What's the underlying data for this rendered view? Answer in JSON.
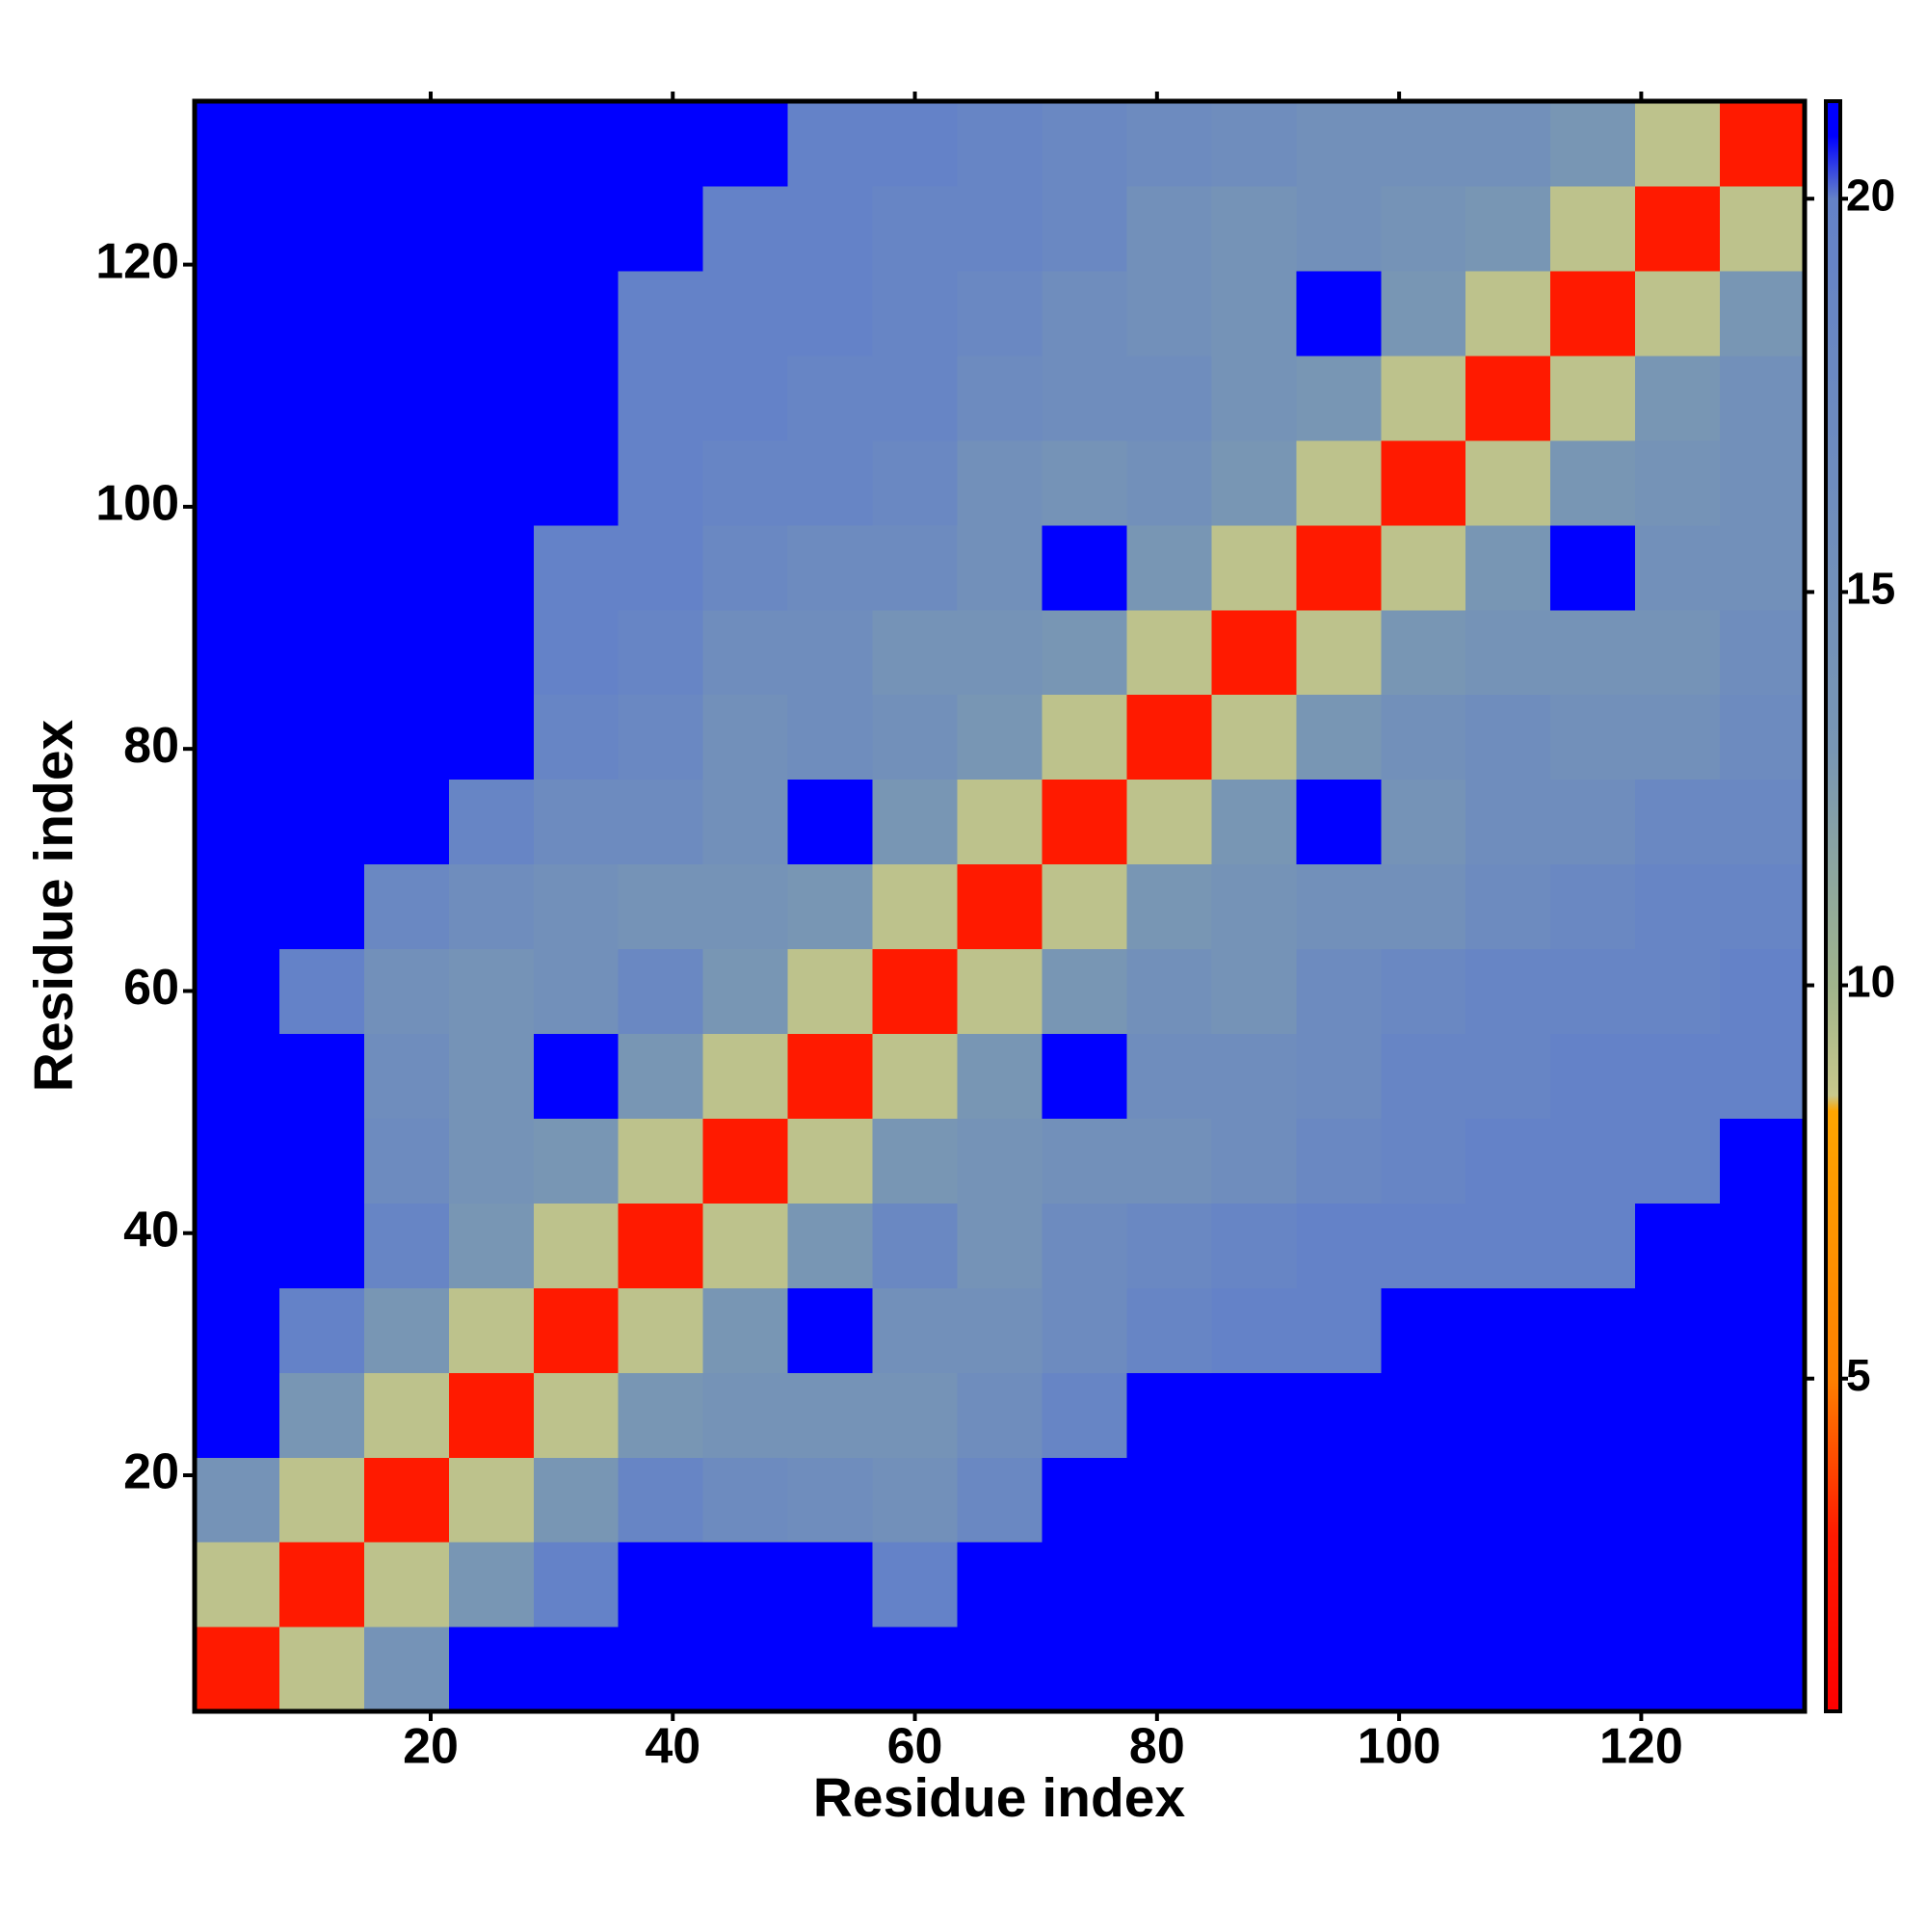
{
  "chart_data": {
    "type": "heatmap",
    "xlabel": "Residue index",
    "ylabel": "Residue index",
    "xlim": [
      0.5,
      133.5
    ],
    "ylim": [
      0.5,
      133.5
    ],
    "xticks": [
      20,
      40,
      60,
      80,
      100,
      120
    ],
    "yticks": [
      20,
      40,
      60,
      80,
      100,
      120
    ],
    "xbins": [
      0.5,
      7.5,
      14.5,
      21.5,
      28.5,
      35.5,
      42.5,
      49.5,
      56.5,
      63.5,
      70.5,
      77.5,
      84.5,
      91.5,
      98.5,
      105.5,
      112.5,
      119.5,
      126.5,
      133.5
    ],
    "ybins": [
      0.5,
      7.5,
      14.5,
      21.5,
      28.5,
      35.5,
      42.5,
      49.5,
      56.5,
      63.5,
      70.5,
      77.5,
      84.5,
      91.5,
      98.5,
      105.5,
      112.5,
      119.5,
      126.5,
      133.5
    ],
    "zlim": [
      0.77,
      21.24
    ],
    "zticks": [
      5,
      10,
      15,
      20
    ],
    "colorscale": [
      {
        "value": 0.77,
        "color": "#ff0000"
      },
      {
        "value": 3,
        "color": "#ff1a00"
      },
      {
        "value": 5,
        "color": "#ff8000"
      },
      {
        "value": 8.4,
        "color": "#ffa500"
      },
      {
        "value": 8.6,
        "color": "#c8c88c"
      },
      {
        "value": 10,
        "color": "#a0b48c"
      },
      {
        "value": 13,
        "color": "#7896b4"
      },
      {
        "value": 20,
        "color": "#6482c8"
      },
      {
        "value": 20.8,
        "color": "#0000ff"
      },
      {
        "value": 21.24,
        "color": "#0000ff"
      }
    ],
    "z": [
      [
        3,
        9,
        14,
        21,
        21,
        21,
        21,
        21,
        21,
        21,
        21,
        21,
        21,
        21,
        21,
        21,
        21,
        21,
        21
      ],
      [
        9,
        3,
        9,
        13,
        20,
        21,
        21,
        21,
        20,
        21,
        21,
        21,
        21,
        21,
        21,
        21,
        21,
        21,
        21
      ],
      [
        14,
        9,
        3,
        9,
        13,
        19,
        17,
        16,
        15,
        18,
        21,
        21,
        21,
        21,
        21,
        21,
        21,
        21,
        21
      ],
      [
        21,
        13,
        9,
        3,
        9,
        13,
        14,
        14,
        14,
        16,
        19,
        21,
        21,
        21,
        21,
        21,
        21,
        21,
        21
      ],
      [
        21,
        20,
        13,
        9,
        3,
        9,
        13,
        21,
        15,
        15,
        17,
        19,
        20,
        20,
        21,
        21,
        21,
        21,
        21
      ],
      [
        21,
        21,
        19,
        13,
        9,
        3,
        9,
        13,
        18,
        14,
        17,
        18,
        19,
        20,
        20,
        20,
        20,
        21,
        21
      ],
      [
        21,
        21,
        17,
        14,
        13,
        9,
        3,
        9,
        13,
        14,
        15,
        15,
        16,
        18,
        19,
        20,
        20,
        20,
        21
      ],
      [
        21,
        21,
        16,
        14,
        21,
        13,
        9,
        3,
        9,
        13,
        21,
        16,
        16,
        17,
        19,
        19,
        20,
        20,
        20
      ],
      [
        21,
        20,
        15,
        14,
        15,
        18,
        13,
        9,
        3,
        9,
        13,
        15,
        14,
        17,
        18,
        19,
        19,
        19,
        20
      ],
      [
        21,
        21,
        18,
        16,
        15,
        14,
        14,
        13,
        9,
        3,
        9,
        13,
        14,
        15,
        15,
        17,
        18,
        19,
        19
      ],
      [
        21,
        21,
        21,
        19,
        17,
        17,
        15,
        21,
        13,
        9,
        3,
        9,
        13,
        21,
        14,
        16,
        16,
        18,
        18
      ],
      [
        21,
        21,
        21,
        21,
        19,
        18,
        15,
        16,
        15,
        13,
        9,
        3,
        9,
        13,
        15,
        16,
        15,
        15,
        17
      ],
      [
        21,
        21,
        21,
        21,
        20,
        19,
        16,
        16,
        14,
        14,
        13,
        9,
        3,
        9,
        13,
        14,
        14,
        14,
        16
      ],
      [
        21,
        21,
        21,
        21,
        20,
        20,
        18,
        17,
        17,
        15,
        21,
        13,
        9,
        3,
        9,
        13,
        21,
        15,
        15
      ],
      [
        21,
        21,
        21,
        21,
        21,
        20,
        19,
        19,
        18,
        15,
        14,
        15,
        13,
        9,
        3,
        9,
        13,
        14,
        15
      ],
      [
        21,
        21,
        21,
        21,
        21,
        20,
        20,
        19,
        19,
        17,
        16,
        16,
        14,
        13,
        9,
        3,
        9,
        13,
        15
      ],
      [
        21,
        21,
        21,
        21,
        21,
        20,
        20,
        20,
        19,
        18,
        16,
        15,
        14,
        21,
        13,
        9,
        3,
        9,
        13
      ],
      [
        21,
        21,
        21,
        21,
        21,
        21,
        20,
        20,
        19,
        19,
        18,
        15,
        14,
        15,
        14,
        13,
        9,
        3,
        9
      ],
      [
        21,
        21,
        21,
        21,
        21,
        21,
        21,
        20,
        20,
        19,
        18,
        17,
        16,
        15,
        15,
        15,
        13,
        9,
        3
      ]
    ]
  }
}
